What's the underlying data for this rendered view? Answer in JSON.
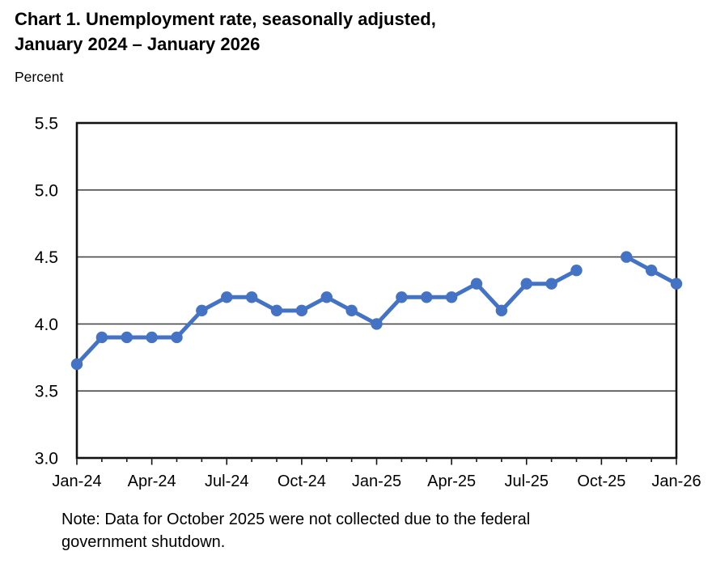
{
  "chart_data": {
    "type": "line",
    "title": "Chart 1. Unemployment rate, seasonally adjusted, January 2024 – January 2026",
    "title_lines": [
      "Chart 1. Unemployment rate, seasonally adjusted,",
      "January 2024 – January 2026"
    ],
    "ylabel": "Percent",
    "x": [
      "Jan-24",
      "Feb-24",
      "Mar-24",
      "Apr-24",
      "May-24",
      "Jun-24",
      "Jul-24",
      "Aug-24",
      "Sep-24",
      "Oct-24",
      "Nov-24",
      "Dec-24",
      "Jan-25",
      "Feb-25",
      "Mar-25",
      "Apr-25",
      "May-25",
      "Jun-25",
      "Jul-25",
      "Aug-25",
      "Sep-25",
      "Oct-25",
      "Nov-25",
      "Dec-25",
      "Jan-26"
    ],
    "values": [
      3.7,
      3.9,
      3.9,
      3.9,
      3.9,
      4.1,
      4.2,
      4.2,
      4.1,
      4.1,
      4.2,
      4.1,
      4.0,
      4.2,
      4.2,
      4.2,
      4.3,
      4.1,
      4.3,
      4.3,
      4.4,
      null,
      4.5,
      4.4,
      4.3
    ],
    "x_tick_labels": [
      "Jan-24",
      "Apr-24",
      "Jul-24",
      "Oct-24",
      "Jan-25",
      "Apr-25",
      "Jul-25",
      "Oct-25",
      "Jan-26"
    ],
    "x_tick_every": 3,
    "y_ticks": [
      "5.5",
      "5.0",
      "4.5",
      "4.0",
      "3.5",
      "3.0"
    ],
    "ylim": [
      3.0,
      5.5
    ],
    "grid": true,
    "legend": false,
    "marker": "circle",
    "colors": {
      "line": "#4472C4",
      "grid": "#4a4a4a",
      "border": "#111111",
      "text": "#000000"
    },
    "note": "Note: Data for October 2025 were not collected due to the federal government shutdown.",
    "note_lines": [
      "Note: Data for October 2025 were not collected due to the federal",
      "government shutdown."
    ]
  }
}
